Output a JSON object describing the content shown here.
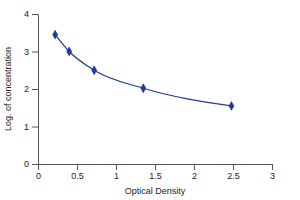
{
  "chart_data": {
    "type": "line",
    "x_label": "Optical Density",
    "y_label": "Log. of concentration",
    "x": [
      0.22,
      0.4,
      0.72,
      1.35,
      2.48
    ],
    "values": [
      3.45,
      3.0,
      2.5,
      2.02,
      1.55
    ],
    "color": "#1f3d99",
    "marker": "diamond",
    "line_style": "solid",
    "xlim": [
      0,
      3
    ],
    "xticks": [
      0,
      0.5,
      1,
      1.5,
      2,
      2.5,
      3
    ],
    "ylim": [
      0,
      4
    ],
    "yticks": [
      0,
      1,
      2,
      3,
      4
    ],
    "grid": false
  }
}
